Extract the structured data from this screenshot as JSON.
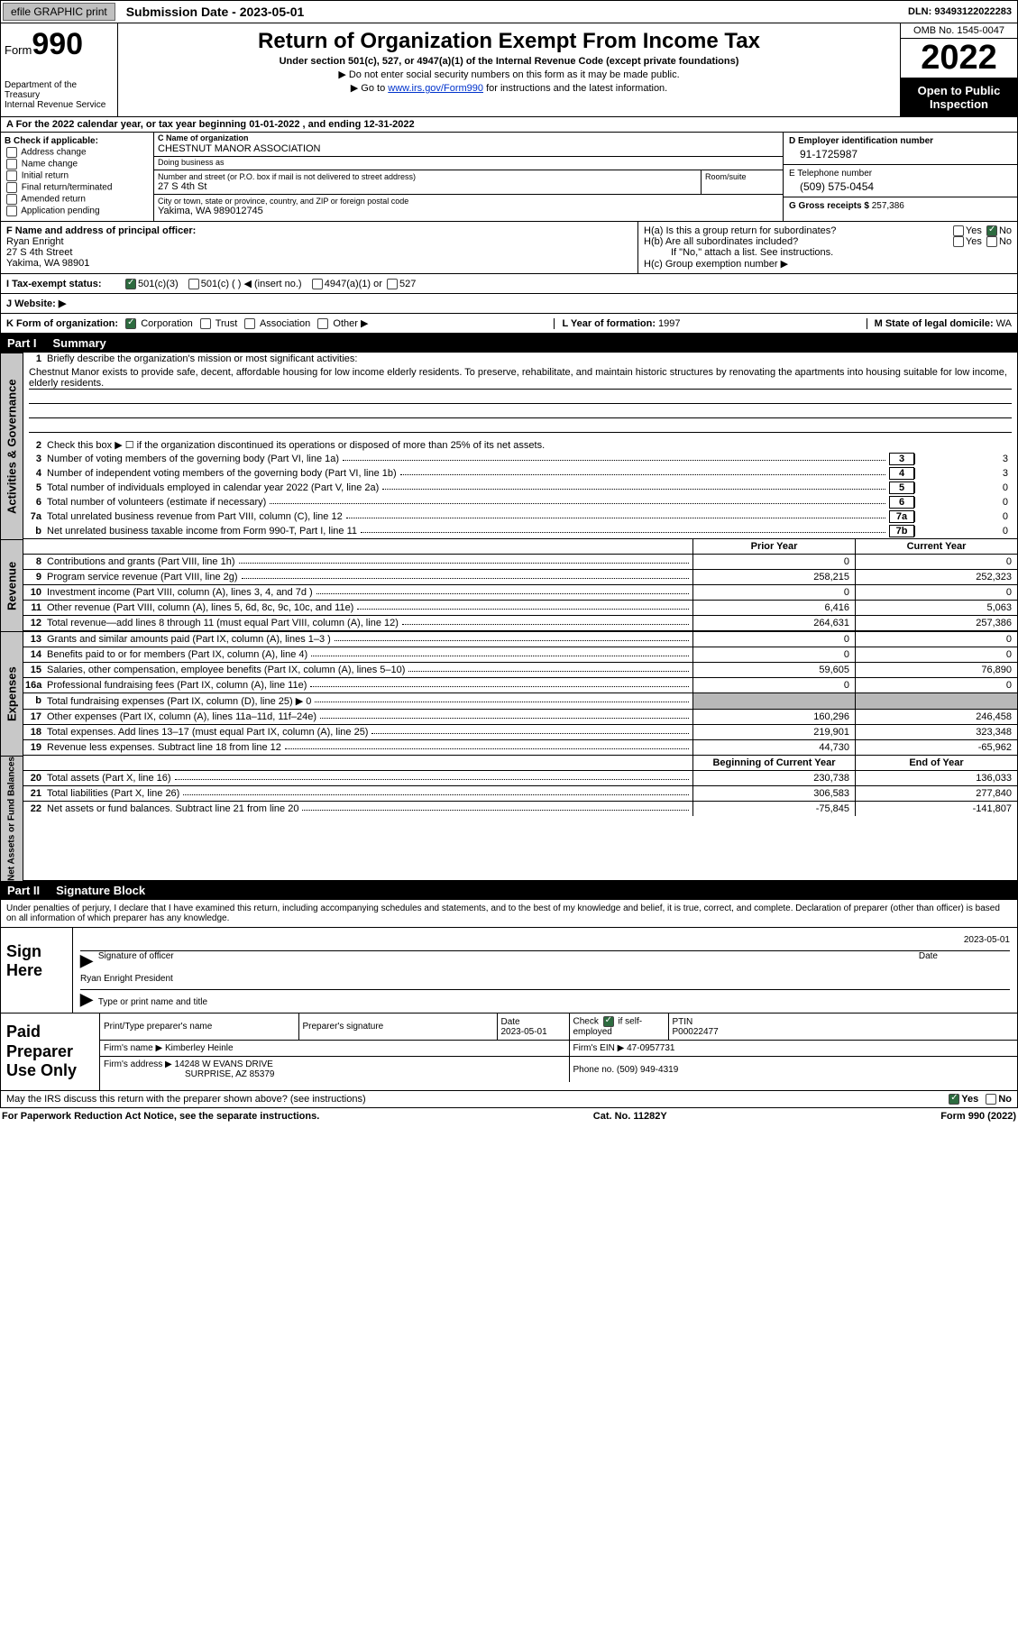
{
  "topbar": {
    "efile": "efile GRAPHIC print",
    "sub_label": "Submission Date - ",
    "sub_date": "2023-05-01",
    "dln_label": "DLN: ",
    "dln": "93493122022283"
  },
  "header": {
    "form_word": "Form",
    "form_num": "990",
    "dept": "Department of the Treasury",
    "irs": "Internal Revenue Service",
    "title": "Return of Organization Exempt From Income Tax",
    "sub1": "Under section 501(c), 527, or 4947(a)(1) of the Internal Revenue Code (except private foundations)",
    "sub2a": "▶ Do not enter social security numbers on this form as it may be made public.",
    "sub2b_pre": "▶ Go to ",
    "sub2b_link": "www.irs.gov/Form990",
    "sub2b_post": " for instructions and the latest information.",
    "omb": "OMB No. 1545-0047",
    "year": "2022",
    "open": "Open to Public Inspection"
  },
  "rowA": {
    "text": "A  For the 2022 calendar year, or tax year beginning 01-01-2022     , and ending 12-31-2022"
  },
  "colB": {
    "hdr": "B Check if applicable:",
    "opts": [
      "Address change",
      "Name change",
      "Initial return",
      "Final return/terminated",
      "Amended return",
      "Application pending"
    ]
  },
  "colC": {
    "name_lbl": "C Name of organization",
    "name": "CHESTNUT MANOR ASSOCIATION",
    "dba_lbl": "Doing business as",
    "dba": "",
    "street_lbl": "Number and street (or P.O. box if mail is not delivered to street address)",
    "street": "27 S 4th St",
    "room_lbl": "Room/suite",
    "room": "",
    "city_lbl": "City or town, state or province, country, and ZIP or foreign postal code",
    "city": "Yakima, WA   989012745"
  },
  "colD": {
    "ein_lbl": "D Employer identification number",
    "ein": "91-1725987",
    "tel_lbl": "E Telephone number",
    "tel": "(509) 575-0454",
    "gross_lbl": "G Gross receipts $ ",
    "gross": "257,386"
  },
  "fh": {
    "f_lbl": "F Name and address of principal officer:",
    "f_name": "Ryan Enright",
    "f_addr1": "27 S 4th Street",
    "f_addr2": "Yakima, WA   98901",
    "ha": "H(a)  Is this a group return for subordinates?",
    "hb": "H(b)  Are all subordinates included?",
    "hb_note": "If \"No,\" attach a list. See instructions.",
    "hc": "H(c)  Group exemption number ▶",
    "yes": "Yes",
    "no": "No"
  },
  "status": {
    "i_lbl": "I    Tax-exempt status:",
    "c3": "501(c)(3)",
    "c": "501(c) (   ) ◀ (insert no.)",
    "a1": "4947(a)(1) or",
    "s527": "527",
    "j_lbl": "J   Website: ▶"
  },
  "korg": {
    "k_lbl": "K Form of organization:",
    "corp": "Corporation",
    "trust": "Trust",
    "assoc": "Association",
    "other": "Other ▶",
    "l_lbl": "L Year of formation: ",
    "l_val": "1997",
    "m_lbl": "M State of legal domicile: ",
    "m_val": "WA"
  },
  "part1": {
    "label": "Part I",
    "title": "Summary",
    "band_ag": "Activities & Governance",
    "band_rev": "Revenue",
    "band_exp": "Expenses",
    "band_net": "Net Assets or Fund Balances",
    "l1_pre": "Briefly describe the organization's mission or most significant activities:",
    "mission": "Chestnut Manor exists to provide safe, decent, affordable housing for low income elderly residents. To preserve, rehabilitate, and maintain historic structures by renovating the apartments into housing suitable for low income, elderly residents.",
    "l2": "Check this box ▶ ☐  if the organization discontinued its operations or disposed of more than 25% of its net assets.",
    "lines_top": [
      {
        "n": "3",
        "t": "Number of voting members of the governing body (Part VI, line 1a)",
        "box": "3",
        "v": "3"
      },
      {
        "n": "4",
        "t": "Number of independent voting members of the governing body (Part VI, line 1b)",
        "box": "4",
        "v": "3"
      },
      {
        "n": "5",
        "t": "Total number of individuals employed in calendar year 2022 (Part V, line 2a)",
        "box": "5",
        "v": "0"
      },
      {
        "n": "6",
        "t": "Total number of volunteers (estimate if necessary)",
        "box": "6",
        "v": "0"
      },
      {
        "n": "7a",
        "t": "Total unrelated business revenue from Part VIII, column (C), line 12",
        "box": "7a",
        "v": "0"
      },
      {
        "n": "b",
        "t": "Net unrelated business taxable income from Form 990-T, Part I, line 11",
        "box": "7b",
        "v": "0"
      }
    ],
    "col_prior": "Prior Year",
    "col_current": "Current Year",
    "rev": [
      {
        "n": "8",
        "t": "Contributions and grants (Part VIII, line 1h)",
        "p": "0",
        "c": "0"
      },
      {
        "n": "9",
        "t": "Program service revenue (Part VIII, line 2g)",
        "p": "258,215",
        "c": "252,323"
      },
      {
        "n": "10",
        "t": "Investment income (Part VIII, column (A), lines 3, 4, and 7d )",
        "p": "0",
        "c": "0"
      },
      {
        "n": "11",
        "t": "Other revenue (Part VIII, column (A), lines 5, 6d, 8c, 9c, 10c, and 11e)",
        "p": "6,416",
        "c": "5,063"
      },
      {
        "n": "12",
        "t": "Total revenue—add lines 8 through 11 (must equal Part VIII, column (A), line 12)",
        "p": "264,631",
        "c": "257,386"
      }
    ],
    "exp": [
      {
        "n": "13",
        "t": "Grants and similar amounts paid (Part IX, column (A), lines 1–3 )",
        "p": "0",
        "c": "0"
      },
      {
        "n": "14",
        "t": "Benefits paid to or for members (Part IX, column (A), line 4)",
        "p": "0",
        "c": "0"
      },
      {
        "n": "15",
        "t": "Salaries, other compensation, employee benefits (Part IX, column (A), lines 5–10)",
        "p": "59,605",
        "c": "76,890"
      },
      {
        "n": "16a",
        "t": "Professional fundraising fees (Part IX, column (A), line 11e)",
        "p": "0",
        "c": "0"
      },
      {
        "n": "b",
        "t": "Total fundraising expenses (Part IX, column (D), line 25) ▶ 0",
        "p": "shade",
        "c": "shade"
      },
      {
        "n": "17",
        "t": "Other expenses (Part IX, column (A), lines 11a–11d, 11f–24e)",
        "p": "160,296",
        "c": "246,458"
      },
      {
        "n": "18",
        "t": "Total expenses. Add lines 13–17 (must equal Part IX, column (A), line 25)",
        "p": "219,901",
        "c": "323,348"
      },
      {
        "n": "19",
        "t": "Revenue less expenses. Subtract line 18 from line 12",
        "p": "44,730",
        "c": "-65,962"
      }
    ],
    "col_begin": "Beginning of Current Year",
    "col_end": "End of Year",
    "net": [
      {
        "n": "20",
        "t": "Total assets (Part X, line 16)",
        "p": "230,738",
        "c": "136,033"
      },
      {
        "n": "21",
        "t": "Total liabilities (Part X, line 26)",
        "p": "306,583",
        "c": "277,840"
      },
      {
        "n": "22",
        "t": "Net assets or fund balances. Subtract line 21 from line 20",
        "p": "-75,845",
        "c": "-141,807"
      }
    ]
  },
  "part2": {
    "label": "Part II",
    "title": "Signature Block",
    "intro": "Under penalties of perjury, I declare that I have examined this return, including accompanying schedules and statements, and to the best of my knowledge and belief, it is true, correct, and complete. Declaration of preparer (other than officer) is based on all information of which preparer has any knowledge.",
    "sign_here": "Sign Here",
    "sig_officer": "Signature of officer",
    "sig_date": "2023-05-01",
    "date_lbl": "Date",
    "officer_line": "Ryan Enright  President",
    "type_lbl": "Type or print name and title",
    "paid": "Paid Preparer Use Only",
    "pt_name_lbl": "Print/Type preparer's name",
    "pt_sig_lbl": "Preparer's signature",
    "pt_date": "2023-05-01",
    "pt_check": "Check ☑ if self-employed",
    "ptin_lbl": "PTIN",
    "ptin": "P00022477",
    "firm_name_lbl": "Firm's name    ▶ ",
    "firm_name": "Kimberley Heinle",
    "firm_ein_lbl": "Firm's EIN ▶ ",
    "firm_ein": "47-0957731",
    "firm_addr_lbl": "Firm's address ▶ ",
    "firm_addr1": "14248 W EVANS DRIVE",
    "firm_addr2": "SURPRISE, AZ   85379",
    "phone_lbl": "Phone no. ",
    "phone": "(509) 949-4319",
    "discuss": "May the IRS discuss this return with the preparer shown above? (see instructions)",
    "yes": "Yes",
    "no": "No"
  },
  "footer": {
    "left": "For Paperwork Reduction Act Notice, see the separate instructions.",
    "mid": "Cat. No. 11282Y",
    "right": "Form 990 (2022)"
  }
}
